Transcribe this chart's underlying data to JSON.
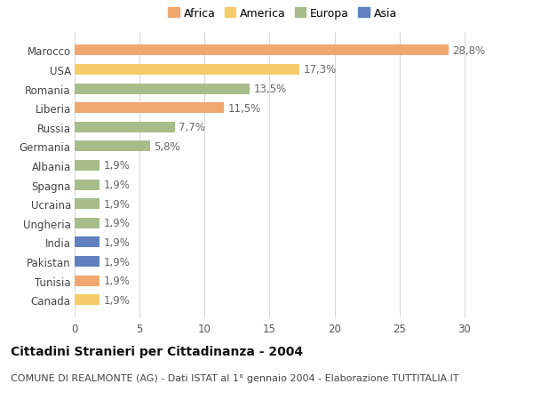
{
  "categories": [
    "Canada",
    "Tunisia",
    "Pakistan",
    "India",
    "Ungheria",
    "Ucraina",
    "Spagna",
    "Albania",
    "Germania",
    "Russia",
    "Liberia",
    "Romania",
    "USA",
    "Marocco"
  ],
  "values": [
    1.9,
    1.9,
    1.9,
    1.9,
    1.9,
    1.9,
    1.9,
    1.9,
    5.8,
    7.7,
    11.5,
    13.5,
    17.3,
    28.8
  ],
  "continents": [
    "America",
    "Africa",
    "Asia",
    "Asia",
    "Europa",
    "Europa",
    "Europa",
    "Europa",
    "Europa",
    "Europa",
    "Africa",
    "Europa",
    "America",
    "Africa"
  ],
  "colors": {
    "Africa": "#F0A870",
    "America": "#F5CC6A",
    "Europa": "#A8BC8A",
    "Asia": "#6080C0"
  },
  "legend_order": [
    "Africa",
    "America",
    "Europa",
    "Asia"
  ],
  "legend_colors": {
    "Africa": "#F0A870",
    "America": "#F5CC6A",
    "Europa": "#A8BC8A",
    "Asia": "#6080C0"
  },
  "title": "Cittadini Stranieri per Cittadinanza - 2004",
  "subtitle": "COMUNE DI REALMONTE (AG) - Dati ISTAT al 1° gennaio 2004 - Elaborazione TUTTITALIA.IT",
  "xlim": [
    0,
    32
  ],
  "xticks": [
    0,
    5,
    10,
    15,
    20,
    25,
    30
  ],
  "label_fontsize": 8.5,
  "bar_height": 0.55,
  "bg_color": "#ffffff",
  "grid_color": "#d8d8d8",
  "title_fontsize": 10,
  "subtitle_fontsize": 8
}
